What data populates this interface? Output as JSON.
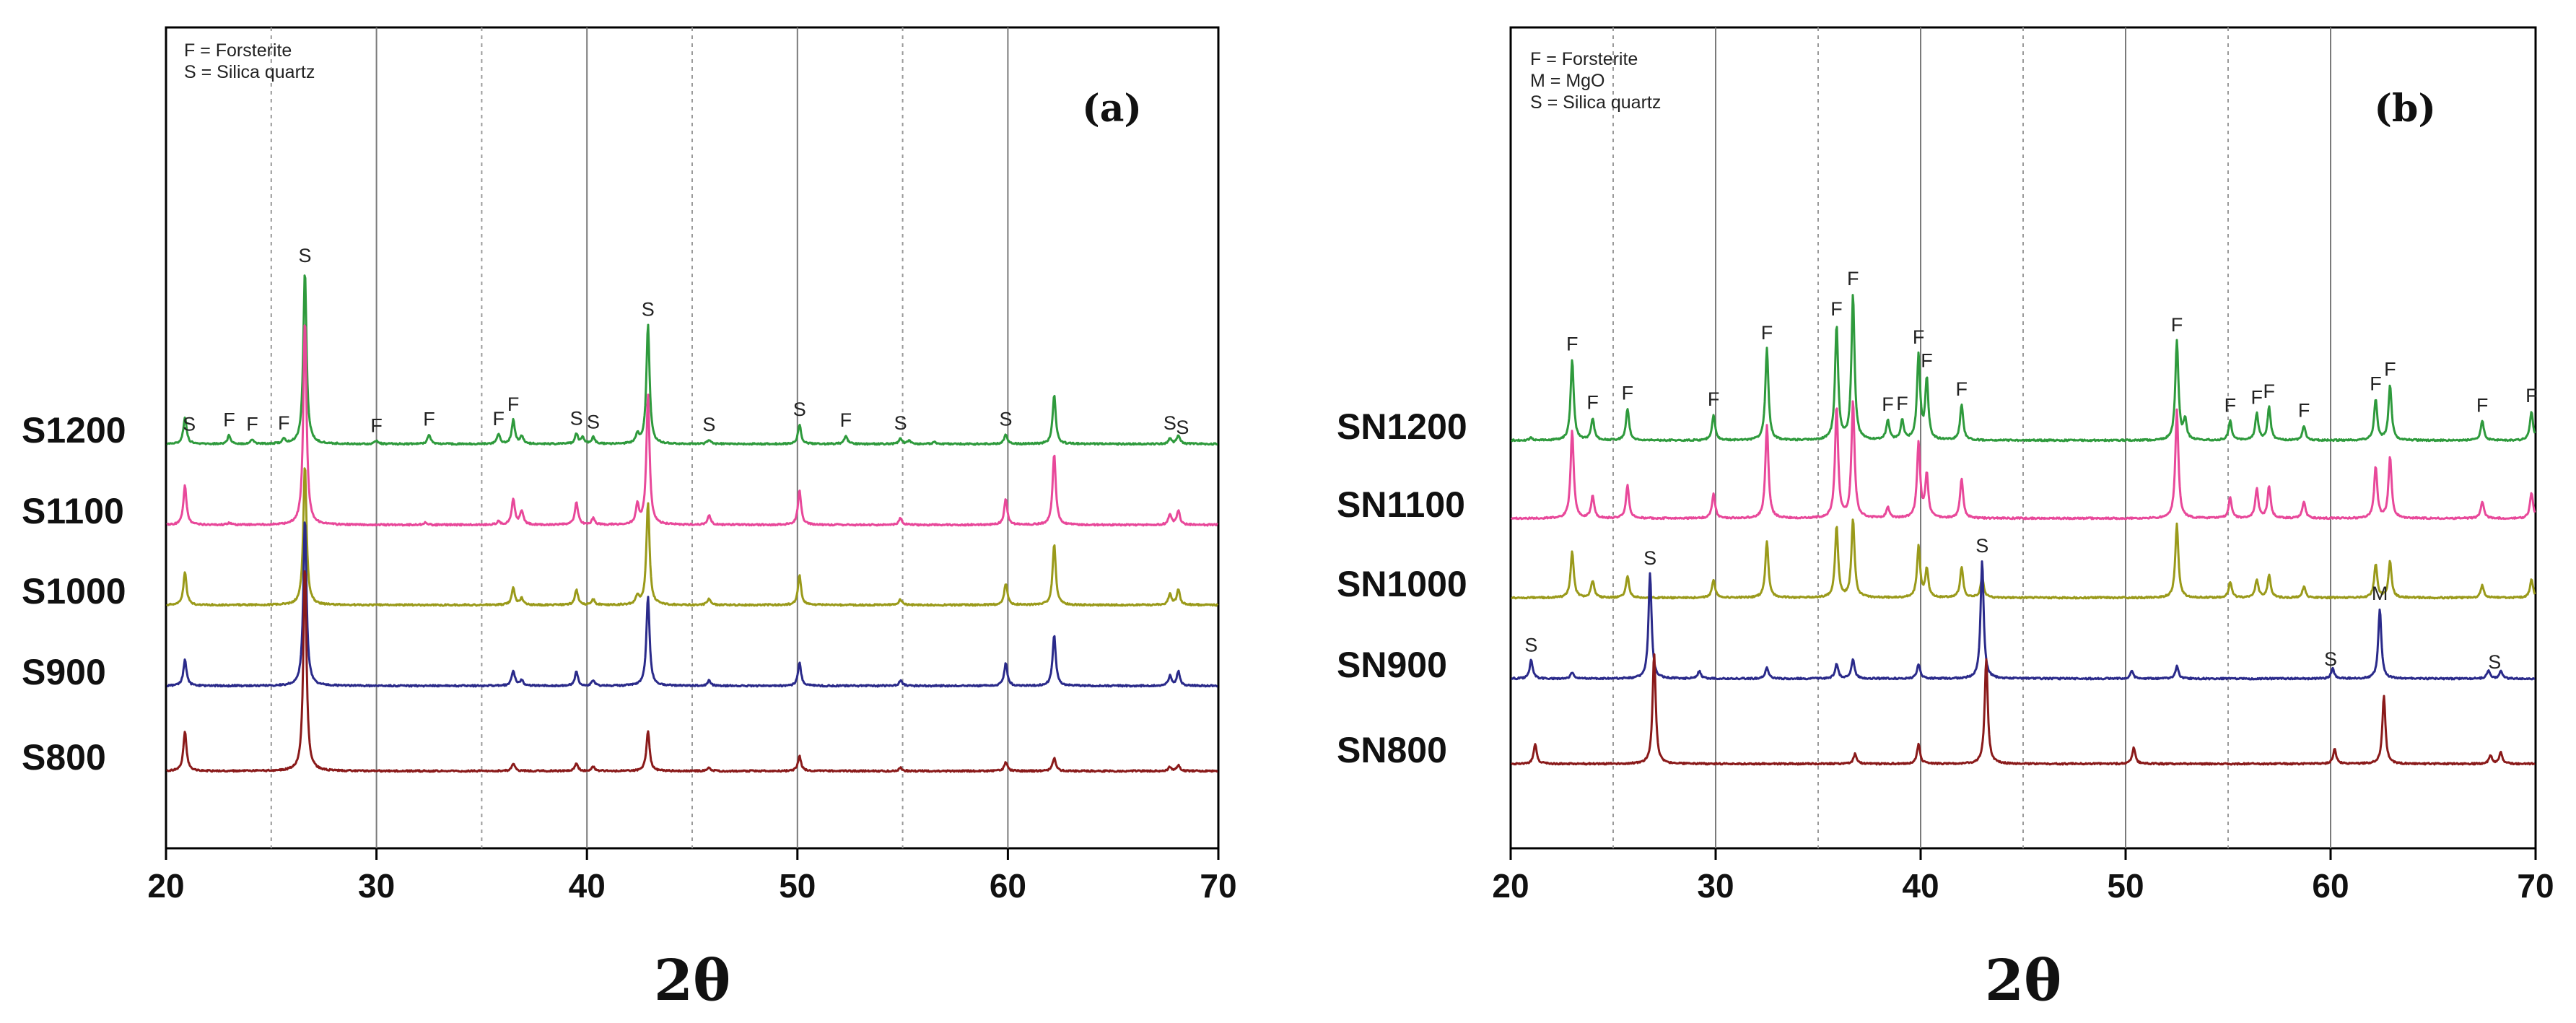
{
  "chart_data": [
    {
      "type": "line",
      "panel": "(a)",
      "xlabel": "2θ",
      "ylabel": "",
      "xlim": [
        20,
        70
      ],
      "xticks": [
        20,
        30,
        40,
        50,
        60,
        70
      ],
      "grid_solid": [
        30,
        40,
        50,
        60
      ],
      "grid_dashed": [
        25,
        35,
        45,
        55
      ],
      "legend": [
        "F = Forsterite",
        "S = Silica quartz"
      ],
      "series": [
        {
          "name": "S1200",
          "color": "#2e9a3c",
          "peaks": [
            [
              20.9,
              0.25
            ],
            [
              23.0,
              0.08
            ],
            [
              24.1,
              0.04
            ],
            [
              25.6,
              0.04
            ],
            [
              26.6,
              1.6
            ],
            [
              30.0,
              0.03
            ],
            [
              32.5,
              0.09
            ],
            [
              35.8,
              0.09
            ],
            [
              36.5,
              0.22
            ],
            [
              36.9,
              0.07
            ],
            [
              39.5,
              0.09
            ],
            [
              39.8,
              0.06
            ],
            [
              40.3,
              0.06
            ],
            [
              42.4,
              0.08
            ],
            [
              42.9,
              1.1
            ],
            [
              45.8,
              0.04
            ],
            [
              50.1,
              0.18
            ],
            [
              52.3,
              0.08
            ],
            [
              54.9,
              0.05
            ],
            [
              55.3,
              0.03
            ],
            [
              56.5,
              0.02
            ],
            [
              59.9,
              0.09
            ],
            [
              62.2,
              0.45
            ],
            [
              67.7,
              0.05
            ],
            [
              68.1,
              0.08
            ]
          ]
        },
        {
          "name": "S1100",
          "color": "#e8489a",
          "peaks": [
            [
              20.9,
              0.36
            ],
            [
              23.0,
              0.02
            ],
            [
              26.6,
              1.9
            ],
            [
              32.3,
              0.02
            ],
            [
              35.8,
              0.03
            ],
            [
              36.5,
              0.24
            ],
            [
              36.9,
              0.13
            ],
            [
              39.5,
              0.21
            ],
            [
              40.3,
              0.06
            ],
            [
              42.4,
              0.18
            ],
            [
              42.9,
              1.2
            ],
            [
              45.8,
              0.09
            ],
            [
              50.1,
              0.32
            ],
            [
              54.9,
              0.06
            ],
            [
              59.9,
              0.24
            ],
            [
              62.2,
              0.66
            ],
            [
              67.7,
              0.09
            ],
            [
              68.1,
              0.13
            ]
          ]
        },
        {
          "name": "S1000",
          "color": "#9a9a1a",
          "peaks": [
            [
              20.9,
              0.3
            ],
            [
              26.6,
              1.3
            ],
            [
              36.5,
              0.16
            ],
            [
              36.9,
              0.06
            ],
            [
              39.5,
              0.14
            ],
            [
              40.3,
              0.05
            ],
            [
              42.4,
              0.08
            ],
            [
              42.9,
              0.95
            ],
            [
              45.8,
              0.06
            ],
            [
              50.1,
              0.27
            ],
            [
              54.9,
              0.05
            ],
            [
              59.9,
              0.2
            ],
            [
              62.2,
              0.56
            ],
            [
              67.7,
              0.1
            ],
            [
              68.1,
              0.14
            ]
          ]
        },
        {
          "name": "S900",
          "color": "#2a2a8a",
          "peaks": [
            [
              20.9,
              0.24
            ],
            [
              26.6,
              1.55
            ],
            [
              36.5,
              0.14
            ],
            [
              36.9,
              0.05
            ],
            [
              39.5,
              0.13
            ],
            [
              40.3,
              0.05
            ],
            [
              42.9,
              0.83
            ],
            [
              45.8,
              0.05
            ],
            [
              50.1,
              0.21
            ],
            [
              54.9,
              0.05
            ],
            [
              59.9,
              0.21
            ],
            [
              62.2,
              0.47
            ],
            [
              67.7,
              0.09
            ],
            [
              68.1,
              0.13
            ]
          ]
        },
        {
          "name": "S800",
          "color": "#8a1a1a",
          "peaks": [
            [
              20.9,
              0.37
            ],
            [
              26.6,
              1.9
            ],
            [
              36.5,
              0.07
            ],
            [
              39.5,
              0.07
            ],
            [
              40.3,
              0.04
            ],
            [
              42.9,
              0.37
            ],
            [
              45.8,
              0.03
            ],
            [
              50.1,
              0.14
            ],
            [
              54.9,
              0.03
            ],
            [
              59.9,
              0.08
            ],
            [
              62.2,
              0.12
            ],
            [
              67.7,
              0.04
            ],
            [
              68.1,
              0.05
            ]
          ]
        }
      ],
      "annotations": [
        {
          "text": "S",
          "x": 26.6,
          "series": "S1200"
        },
        {
          "text": "S",
          "x": 42.9,
          "series": "S1200"
        },
        {
          "text": "S",
          "x": 21.1,
          "series": "S1200"
        },
        {
          "text": "F",
          "x": 23.0,
          "series": "S1200"
        },
        {
          "text": "F",
          "x": 24.1,
          "series": "S1200"
        },
        {
          "text": "F",
          "x": 25.6,
          "series": "S1200"
        },
        {
          "text": "F",
          "x": 30.0,
          "series": "S1200"
        },
        {
          "text": "F",
          "x": 32.5,
          "series": "S1200"
        },
        {
          "text": "F",
          "x": 35.8,
          "series": "S1200"
        },
        {
          "text": "F",
          "x": 36.5,
          "series": "S1200"
        },
        {
          "text": "S",
          "x": 39.5,
          "series": "S1200"
        },
        {
          "text": "S",
          "x": 40.3,
          "series": "S1200"
        },
        {
          "text": "S",
          "x": 45.8,
          "series": "S1200"
        },
        {
          "text": "S",
          "x": 50.1,
          "series": "S1200"
        },
        {
          "text": "F",
          "x": 52.3,
          "series": "S1200"
        },
        {
          "text": "S",
          "x": 54.9,
          "series": "S1200"
        },
        {
          "text": "S",
          "x": 59.9,
          "series": "S1200"
        },
        {
          "text": "S",
          "x": 67.7,
          "series": "S1200"
        },
        {
          "text": "S",
          "x": 68.3,
          "series": "S1200"
        }
      ]
    },
    {
      "type": "line",
      "panel": "(b)",
      "xlabel": "2θ",
      "ylabel": "",
      "xlim": [
        20,
        70
      ],
      "xticks": [
        20,
        30,
        40,
        50,
        60,
        70
      ],
      "grid_solid": [
        30,
        40,
        50,
        60
      ],
      "grid_dashed": [
        25,
        35,
        45,
        55
      ],
      "legend": [
        "F   = Forsterite",
        "M  = MgO",
        "S   = Silica quartz"
      ],
      "series": [
        {
          "name": "SN1200",
          "color": "#2e9a3c",
          "peaks": [
            [
              21.0,
              0.02
            ],
            [
              23.0,
              0.66
            ],
            [
              24.0,
              0.18
            ],
            [
              25.7,
              0.26
            ],
            [
              29.9,
              0.21
            ],
            [
              32.5,
              0.75
            ],
            [
              35.9,
              0.93
            ],
            [
              36.7,
              1.18
            ],
            [
              38.4,
              0.16
            ],
            [
              39.1,
              0.16
            ],
            [
              39.9,
              0.69
            ],
            [
              40.3,
              0.49
            ],
            [
              42.0,
              0.29
            ],
            [
              52.5,
              0.81
            ],
            [
              52.9,
              0.16
            ],
            [
              55.1,
              0.16
            ],
            [
              56.4,
              0.22
            ],
            [
              57.0,
              0.27
            ],
            [
              58.7,
              0.12
            ],
            [
              62.2,
              0.33
            ],
            [
              62.9,
              0.45
            ],
            [
              67.4,
              0.16
            ],
            [
              69.8,
              0.24
            ]
          ]
        },
        {
          "name": "SN1100",
          "color": "#e8489a",
          "peaks": [
            [
              23.0,
              0.72
            ],
            [
              24.0,
              0.18
            ],
            [
              25.7,
              0.27
            ],
            [
              29.9,
              0.2
            ],
            [
              32.5,
              0.76
            ],
            [
              35.9,
              0.91
            ],
            [
              36.7,
              0.95
            ],
            [
              38.4,
              0.09
            ],
            [
              39.9,
              0.62
            ],
            [
              40.3,
              0.35
            ],
            [
              42.0,
              0.32
            ],
            [
              52.5,
              0.88
            ],
            [
              55.1,
              0.17
            ],
            [
              56.4,
              0.24
            ],
            [
              57.0,
              0.26
            ],
            [
              58.7,
              0.14
            ],
            [
              62.2,
              0.42
            ],
            [
              62.9,
              0.5
            ],
            [
              67.4,
              0.14
            ],
            [
              69.8,
              0.21
            ]
          ]
        },
        {
          "name": "SN1000",
          "color": "#9a9a1a",
          "peaks": [
            [
              23.0,
              0.38
            ],
            [
              24.0,
              0.14
            ],
            [
              25.7,
              0.18
            ],
            [
              29.9,
              0.15
            ],
            [
              32.5,
              0.46
            ],
            [
              35.9,
              0.58
            ],
            [
              36.7,
              0.64
            ],
            [
              39.9,
              0.42
            ],
            [
              40.3,
              0.23
            ],
            [
              42.0,
              0.25
            ],
            [
              43.0,
              0.17
            ],
            [
              52.5,
              0.6
            ],
            [
              55.1,
              0.13
            ],
            [
              56.4,
              0.15
            ],
            [
              57.0,
              0.18
            ],
            [
              58.7,
              0.09
            ],
            [
              62.2,
              0.27
            ],
            [
              62.9,
              0.3
            ],
            [
              67.4,
              0.1
            ],
            [
              69.8,
              0.15
            ]
          ]
        },
        {
          "name": "SN900",
          "color": "#2a2a8a",
          "peaks": [
            [
              21.0,
              0.15
            ],
            [
              23.0,
              0.05
            ],
            [
              26.8,
              0.86
            ],
            [
              29.2,
              0.06
            ],
            [
              32.5,
              0.09
            ],
            [
              35.9,
              0.12
            ],
            [
              36.7,
              0.16
            ],
            [
              39.9,
              0.12
            ],
            [
              43.0,
              0.96
            ],
            [
              50.3,
              0.06
            ],
            [
              52.5,
              0.1
            ],
            [
              60.1,
              0.08
            ],
            [
              62.4,
              0.57
            ],
            [
              67.7,
              0.07
            ],
            [
              68.3,
              0.06
            ]
          ]
        },
        {
          "name": "SN800",
          "color": "#8a1a1a",
          "peaks": [
            [
              21.2,
              0.16
            ],
            [
              27.0,
              0.9
            ],
            [
              36.8,
              0.08
            ],
            [
              39.9,
              0.16
            ],
            [
              43.2,
              0.85
            ],
            [
              50.4,
              0.13
            ],
            [
              60.2,
              0.12
            ],
            [
              62.6,
              0.55
            ],
            [
              67.8,
              0.07
            ],
            [
              68.3,
              0.09
            ]
          ]
        }
      ],
      "annotations": [
        {
          "text": "F",
          "x": 23.0,
          "series": "SN1200"
        },
        {
          "text": "F",
          "x": 24.0,
          "series": "SN1200"
        },
        {
          "text": "F",
          "x": 25.7,
          "series": "SN1200"
        },
        {
          "text": "F",
          "x": 29.9,
          "series": "SN1200"
        },
        {
          "text": "F",
          "x": 32.5,
          "series": "SN1200"
        },
        {
          "text": "F",
          "x": 35.9,
          "series": "SN1200"
        },
        {
          "text": "F",
          "x": 36.7,
          "series": "SN1200"
        },
        {
          "text": "F",
          "x": 38.4,
          "series": "SN1200"
        },
        {
          "text": "F",
          "x": 39.1,
          "series": "SN1200"
        },
        {
          "text": "F",
          "x": 39.9,
          "series": "SN1200"
        },
        {
          "text": "F",
          "x": 40.3,
          "series": "SN1200"
        },
        {
          "text": "F",
          "x": 42.0,
          "series": "SN1200"
        },
        {
          "text": "F",
          "x": 52.5,
          "series": "SN1200"
        },
        {
          "text": "F",
          "x": 55.1,
          "series": "SN1200"
        },
        {
          "text": "F",
          "x": 56.4,
          "series": "SN1200"
        },
        {
          "text": "F",
          "x": 57.0,
          "series": "SN1200"
        },
        {
          "text": "F",
          "x": 58.7,
          "series": "SN1200"
        },
        {
          "text": "F",
          "x": 62.2,
          "series": "SN1200"
        },
        {
          "text": "F",
          "x": 62.9,
          "series": "SN1200"
        },
        {
          "text": "F",
          "x": 67.4,
          "series": "SN1200"
        },
        {
          "text": "F",
          "x": 69.8,
          "series": "SN1200"
        },
        {
          "text": "S",
          "x": 21.0,
          "series": "SN900"
        },
        {
          "text": "S",
          "x": 26.8,
          "series": "SN900"
        },
        {
          "text": "S",
          "x": 43.0,
          "series": "SN900"
        },
        {
          "text": "S",
          "x": 60.0,
          "series": "SN900"
        },
        {
          "text": "M",
          "x": 62.4,
          "series": "SN900"
        },
        {
          "text": "S",
          "x": 68.0,
          "series": "SN900"
        }
      ]
    }
  ]
}
